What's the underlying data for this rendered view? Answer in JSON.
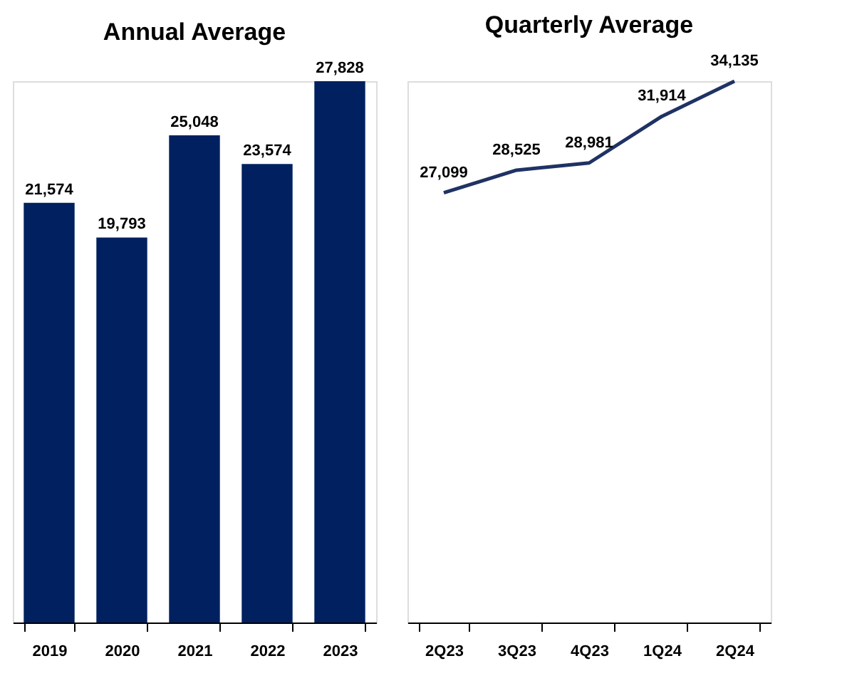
{
  "chart_data": [
    {
      "type": "bar",
      "title": "Annual Average",
      "categories": [
        "2019",
        "2020",
        "2021",
        "2022",
        "2023"
      ],
      "values": [
        21574,
        19793,
        25048,
        23574,
        27828
      ],
      "value_labels": [
        "21,574",
        "19,793",
        "25,048",
        "23,574",
        "27,828"
      ],
      "color": "#002060",
      "grid": false,
      "tick_labels": "x"
    },
    {
      "type": "line",
      "title": "Quarterly Average",
      "categories": [
        "2Q23",
        "3Q23",
        "4Q23",
        "1Q24",
        "2Q24"
      ],
      "values": [
        27099,
        28525,
        28981,
        31914,
        34135
      ],
      "value_labels": [
        "27,099",
        "28,525",
        "28,981",
        "31,914",
        "34,135"
      ],
      "color": "#1f3264",
      "grid": false,
      "tick_labels": "x",
      "marker": "none",
      "line_style": "solid"
    }
  ]
}
